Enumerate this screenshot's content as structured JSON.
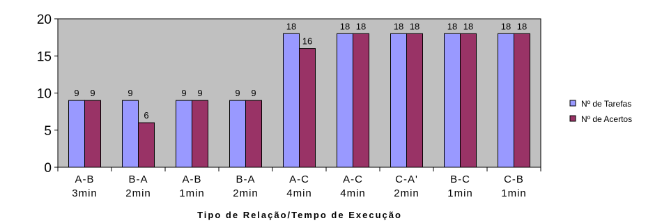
{
  "chart_data": {
    "type": "bar",
    "categories": [
      [
        "A-B",
        "3min"
      ],
      [
        "B-A",
        "2min"
      ],
      [
        "A-B",
        "1min"
      ],
      [
        "B-A",
        "2min"
      ],
      [
        "A-C",
        "4min"
      ],
      [
        "A-C",
        "4min"
      ],
      [
        "C-A'",
        "2min"
      ],
      [
        "B-C",
        "1min"
      ],
      [
        "C-B",
        "1min"
      ]
    ],
    "series": [
      {
        "name": "Nº de Tarefas",
        "color": "#9999ff",
        "values": [
          9,
          9,
          9,
          9,
          18,
          18,
          18,
          18,
          18
        ]
      },
      {
        "name": "Nº de Acertos",
        "color": "#993366",
        "values": [
          9,
          6,
          9,
          9,
          16,
          18,
          18,
          18,
          18
        ]
      }
    ],
    "title": "",
    "xlabel": "Tipo de Relação/Tempo de Execução",
    "ylabel": "",
    "ylim": [
      0,
      20
    ],
    "yticks": [
      0,
      5,
      10,
      15,
      20
    ],
    "grid": false,
    "plot_background": "#c0c0c0",
    "legend": "right",
    "data_labels": true
  }
}
